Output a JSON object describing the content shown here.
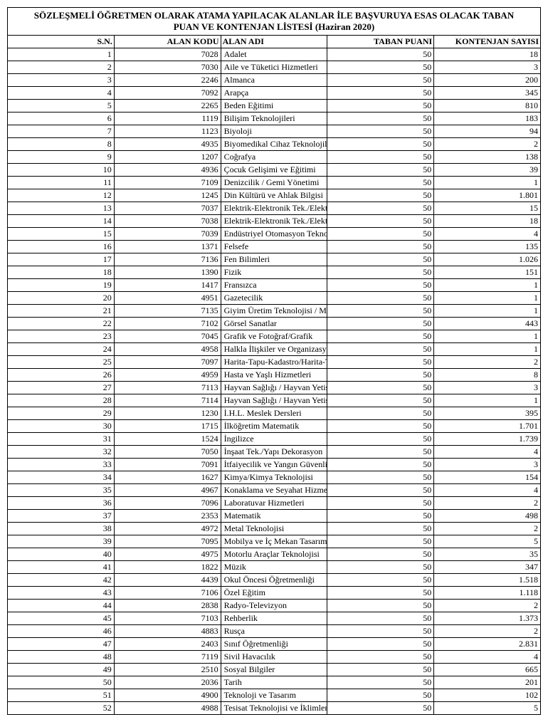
{
  "title_line1": "SÖZLEŞMELİ ÖĞRETMEN OLARAK ATAMA YAPILACAK ALANLAR İLE BAŞVURUYA ESAS OLACAK TABAN",
  "title_line2": "PUAN VE KONTENJAN LİSTESİ  (Haziran  2020)",
  "headers": {
    "sn": "S.N.",
    "kodu": "ALAN KODU",
    "adi": "ALAN ADI",
    "puan": "TABAN PUANI",
    "kontenjan": "KONTENJAN SAYISI"
  },
  "rows": [
    {
      "sn": "1",
      "kodu": "7028",
      "adi": "Adalet",
      "puan": "50",
      "kont": "18"
    },
    {
      "sn": "2",
      "kodu": "7030",
      "adi": "Aile ve Tüketici Hizmetleri",
      "puan": "50",
      "kont": "3"
    },
    {
      "sn": "3",
      "kodu": "2246",
      "adi": "Almanca",
      "puan": "50",
      "kont": "200"
    },
    {
      "sn": "4",
      "kodu": "7092",
      "adi": "Arapça",
      "puan": "50",
      "kont": "345"
    },
    {
      "sn": "5",
      "kodu": "2265",
      "adi": "Beden Eğitimi",
      "puan": "50",
      "kont": "810"
    },
    {
      "sn": "6",
      "kodu": "1119",
      "adi": "Bilişim Teknolojileri",
      "puan": "50",
      "kont": "183"
    },
    {
      "sn": "7",
      "kodu": "1123",
      "adi": "Biyoloji",
      "puan": "50",
      "kont": "94"
    },
    {
      "sn": "8",
      "kodu": "4935",
      "adi": "Biyomedikal Cihaz Teknolojileri",
      "puan": "50",
      "kont": "2"
    },
    {
      "sn": "9",
      "kodu": "1207",
      "adi": "Coğrafya",
      "puan": "50",
      "kont": "138"
    },
    {
      "sn": "10",
      "kodu": "4936",
      "adi": "Çocuk Gelişimi ve Eğitimi",
      "puan": "50",
      "kont": "39"
    },
    {
      "sn": "11",
      "kodu": "7109",
      "adi": "Denizcilik / Gemi Yönetimi",
      "puan": "50",
      "kont": "1"
    },
    {
      "sn": "12",
      "kodu": "1245",
      "adi": "Din Kültürü ve Ahlak Bilgisi",
      "puan": "50",
      "kont": "1.801"
    },
    {
      "sn": "13",
      "kodu": "7037",
      "adi": "Elektrik-Elektronik Tek./Elektrik",
      "puan": "50",
      "kont": "15"
    },
    {
      "sn": "14",
      "kodu": "7038",
      "adi": "Elektrik-Elektronik Tek./Elektronik",
      "puan": "50",
      "kont": "18"
    },
    {
      "sn": "15",
      "kodu": "7039",
      "adi": "Endüstriyel Otomasyon Teknolojileri",
      "puan": "50",
      "kont": "4"
    },
    {
      "sn": "16",
      "kodu": "1371",
      "adi": "Felsefe",
      "puan": "50",
      "kont": "135"
    },
    {
      "sn": "17",
      "kodu": "7136",
      "adi": "Fen Bilimleri",
      "puan": "50",
      "kont": "1.026"
    },
    {
      "sn": "18",
      "kodu": "1390",
      "adi": "Fizik",
      "puan": "50",
      "kont": "151"
    },
    {
      "sn": "19",
      "kodu": "1417",
      "adi": "Fransızca",
      "puan": "50",
      "kont": "1"
    },
    {
      "sn": "20",
      "kodu": "4951",
      "adi": "Gazetecilik",
      "puan": "50",
      "kont": "1"
    },
    {
      "sn": "21",
      "kodu": "7135",
      "adi": "Giyim Üretim Teknolojisi / Moda Tasarım Teknolojileri",
      "puan": "50",
      "kont": "1"
    },
    {
      "sn": "22",
      "kodu": "7102",
      "adi": "Görsel Sanatlar",
      "puan": "50",
      "kont": "443"
    },
    {
      "sn": "23",
      "kodu": "7045",
      "adi": "Grafik ve Fotoğraf/Grafik",
      "puan": "50",
      "kont": "1"
    },
    {
      "sn": "24",
      "kodu": "4958",
      "adi": "Halkla İlişkiler ve Organizasyon Hizmetleri",
      "puan": "50",
      "kont": "1"
    },
    {
      "sn": "25",
      "kodu": "7097",
      "adi": "Harita-Tapu-Kadastro/Harita-Tapu-Kadastro Tekniği",
      "puan": "50",
      "kont": "2"
    },
    {
      "sn": "26",
      "kodu": "4959",
      "adi": "Hasta ve Yaşlı Hizmetleri",
      "puan": "50",
      "kont": "8"
    },
    {
      "sn": "27",
      "kodu": "7113",
      "adi": "Hayvan Sağlığı / Hayvan Yetiştiriciliği ve Sağlığı / Hayvan Sağlığı",
      "puan": "50",
      "kont": "3"
    },
    {
      "sn": "28",
      "kodu": "7114",
      "adi": "Hayvan Sağlığı / Hayvan Yetiştiriciliği ve Sağlığı / Hayvan Yetiştiriciliği",
      "puan": "50",
      "kont": "1"
    },
    {
      "sn": "29",
      "kodu": "1230",
      "adi": "İ.H.L. Meslek Dersleri",
      "puan": "50",
      "kont": "395"
    },
    {
      "sn": "30",
      "kodu": "1715",
      "adi": "İlköğretim Matematik",
      "puan": "50",
      "kont": "1.701"
    },
    {
      "sn": "31",
      "kodu": "1524",
      "adi": "İngilizce",
      "puan": "50",
      "kont": "1.739"
    },
    {
      "sn": "32",
      "kodu": "7050",
      "adi": "İnşaat Tek./Yapı Dekorasyon",
      "puan": "50",
      "kont": "4"
    },
    {
      "sn": "33",
      "kodu": "7091",
      "adi": "İtfaiyecilik ve Yangın Güvenliği",
      "puan": "50",
      "kont": "3"
    },
    {
      "sn": "34",
      "kodu": "1627",
      "adi": "Kimya/Kimya Teknolojisi",
      "puan": "50",
      "kont": "154"
    },
    {
      "sn": "35",
      "kodu": "4967",
      "adi": "Konaklama ve Seyahat Hizmetleri",
      "puan": "50",
      "kont": "4"
    },
    {
      "sn": "36",
      "kodu": "7096",
      "adi": "Laboratuvar Hizmetleri",
      "puan": "50",
      "kont": "2"
    },
    {
      "sn": "37",
      "kodu": "2353",
      "adi": "Matematik",
      "puan": "50",
      "kont": "498"
    },
    {
      "sn": "38",
      "kodu": "4972",
      "adi": "Metal Teknolojisi",
      "puan": "50",
      "kont": "2"
    },
    {
      "sn": "39",
      "kodu": "7095",
      "adi": "Mobilya ve İç Mekan Tasarımı",
      "puan": "50",
      "kont": "5"
    },
    {
      "sn": "40",
      "kodu": "4975",
      "adi": "Motorlu Araçlar Teknolojisi",
      "puan": "50",
      "kont": "35"
    },
    {
      "sn": "41",
      "kodu": "1822",
      "adi": "Müzik",
      "puan": "50",
      "kont": "347"
    },
    {
      "sn": "42",
      "kodu": "4439",
      "adi": "Okul Öncesi Öğretmenliği",
      "puan": "50",
      "kont": "1.518"
    },
    {
      "sn": "43",
      "kodu": "7106",
      "adi": "Özel Eğitim",
      "puan": "50",
      "kont": "1.118"
    },
    {
      "sn": "44",
      "kodu": "2838",
      "adi": "Radyo-Televizyon",
      "puan": "50",
      "kont": "2"
    },
    {
      "sn": "45",
      "kodu": "7103",
      "adi": "Rehberlik",
      "puan": "50",
      "kont": "1.373"
    },
    {
      "sn": "46",
      "kodu": "4883",
      "adi": "Rusça",
      "puan": "50",
      "kont": "2"
    },
    {
      "sn": "47",
      "kodu": "2403",
      "adi": "Sınıf Öğretmenliği",
      "puan": "50",
      "kont": "2.831"
    },
    {
      "sn": "48",
      "kodu": "7119",
      "adi": "Sivil Havacılık",
      "puan": "50",
      "kont": "4"
    },
    {
      "sn": "49",
      "kodu": "2510",
      "adi": "Sosyal Bilgiler",
      "puan": "50",
      "kont": "665"
    },
    {
      "sn": "50",
      "kodu": "2036",
      "adi": "Tarih",
      "puan": "50",
      "kont": "201"
    },
    {
      "sn": "51",
      "kodu": "4900",
      "adi": "Teknoloji ve Tasarım",
      "puan": "50",
      "kont": "102"
    },
    {
      "sn": "52",
      "kodu": "4988",
      "adi": "Tesisat Teknolojisi ve İklimlendirme",
      "puan": "50",
      "kont": "5"
    }
  ]
}
